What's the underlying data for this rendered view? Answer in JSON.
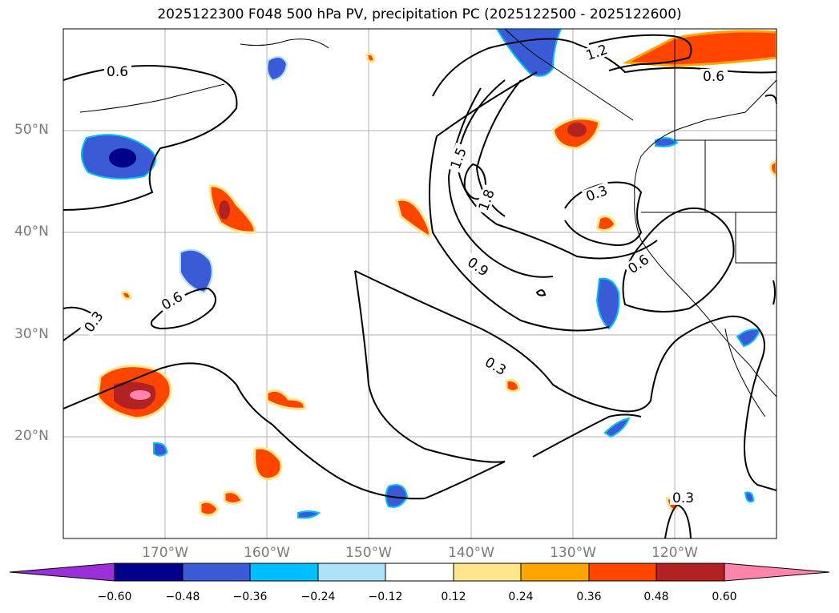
{
  "title": "2025122300 F048 500 hPa PV, precipitation PC (2025122500 - 2025122600)",
  "map": {
    "region": "North-East Pacific / West coast of North America",
    "lat_range": [
      10,
      60
    ],
    "lon_range": [
      -180,
      -110
    ],
    "lat_labels": [
      "50°N",
      "40°N",
      "30°N",
      "20°N"
    ],
    "lon_labels": [
      "170°W",
      "160°W",
      "150°W",
      "140°W",
      "130°W",
      "120°W"
    ],
    "contour_labels": [
      "0.6",
      "0.3",
      "0.6",
      "1.2",
      "0.6",
      "1.5",
      "1.8",
      "0.9",
      "0.3",
      "0.6",
      "0.3",
      "0.3"
    ]
  },
  "colorbar": {
    "ticks": [
      "−0.60",
      "−0.48",
      "−0.36",
      "−0.24",
      "−0.12",
      "0.12",
      "0.24",
      "0.36",
      "0.48",
      "0.60"
    ],
    "colors": [
      "#9b30d9",
      "#00008b",
      "#3b5bd6",
      "#00bfff",
      "#aee2fb",
      "#ffffff",
      "#ffe68a",
      "#ffa500",
      "#ff4500",
      "#b22222",
      "#ff85ad"
    ]
  },
  "colors": {
    "gridline": "#b0b0b0",
    "contour": "#000000",
    "tick_label": "#7a7a7a"
  }
}
